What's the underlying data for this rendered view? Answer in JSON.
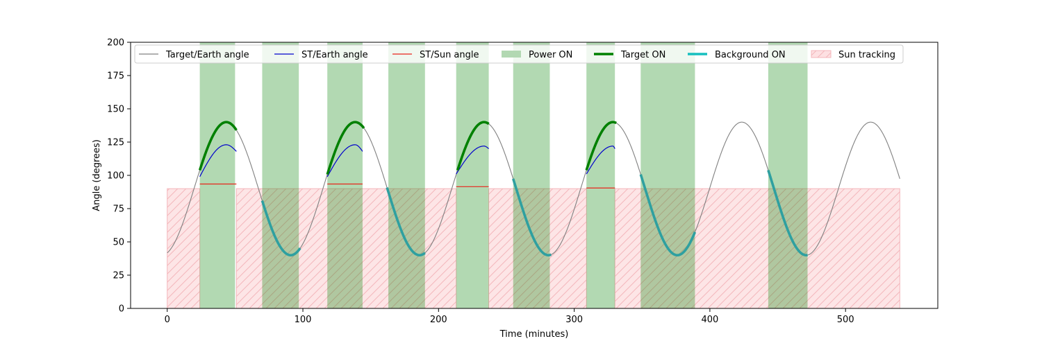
{
  "chart_data": {
    "type": "line",
    "title": "",
    "xlabel": "Time (minutes)",
    "ylabel": "Angle (degrees)",
    "xlim": [
      -27,
      568
    ],
    "ylim": [
      0,
      200
    ],
    "x_ticks": [
      0,
      100,
      200,
      300,
      400,
      500
    ],
    "y_ticks": [
      0,
      25,
      50,
      75,
      100,
      125,
      150,
      175,
      200
    ],
    "grid": false,
    "legend_position": "top",
    "colors": {
      "target_earth": "#808080",
      "st_earth": "#0000cc",
      "st_sun": "#e8231a",
      "power_on": "#b2d8b2",
      "target_on": "#008000",
      "background_on": "#2fa0a0",
      "background_on_legend": "#17bfbf",
      "sun_tracking_fill": "#fde0e2",
      "sun_tracking_hatch": "#f4b6bb"
    },
    "legend": [
      {
        "key": "target_earth",
        "label": "Target/Earth angle",
        "style": "thin-line"
      },
      {
        "key": "st_earth",
        "label": "ST/Earth angle",
        "style": "thin-line"
      },
      {
        "key": "st_sun",
        "label": "ST/Sun angle",
        "style": "thin-line"
      },
      {
        "key": "power_on",
        "label": "Power ON",
        "style": "patch"
      },
      {
        "key": "target_on",
        "label": "Target ON",
        "style": "thick-line"
      },
      {
        "key": "background_on_legend",
        "label": "Background ON",
        "style": "thick-line"
      },
      {
        "key": "sun_tracking_fill",
        "label": "Sun tracking",
        "style": "hatch-patch"
      }
    ],
    "target_earth_model": {
      "mean": 90,
      "amplitude": 50,
      "period": 95.0,
      "peak_time": 43.5,
      "t_start": 0,
      "t_end": 540
    },
    "power_on_intervals": [
      [
        24,
        50
      ],
      [
        70,
        97
      ],
      [
        118,
        144
      ],
      [
        163,
        190
      ],
      [
        213,
        237
      ],
      [
        255,
        282
      ],
      [
        309,
        330
      ],
      [
        349,
        389
      ],
      [
        443,
        472
      ]
    ],
    "sun_tracking_intervals": [
      [
        0,
        24
      ],
      [
        51,
        213
      ],
      [
        237,
        309
      ],
      [
        330,
        540
      ]
    ],
    "sun_tracking_max": 90,
    "target_on_intervals": [
      [
        24,
        51
      ],
      [
        118,
        145
      ],
      [
        214,
        237
      ],
      [
        309,
        331
      ]
    ],
    "background_on_intervals": [
      [
        70,
        98
      ],
      [
        162,
        190
      ],
      [
        255,
        283
      ],
      [
        349,
        389
      ],
      [
        443,
        472
      ]
    ],
    "st_earth_segments": [
      {
        "t_start": 24,
        "t_end": 51,
        "y_start": 99,
        "y_peak": 123,
        "t_peak": 43.5,
        "y_end": 118
      },
      {
        "t_start": 118,
        "t_end": 144,
        "y_start": 99,
        "y_peak": 123,
        "t_peak": 138.5,
        "y_end": 118
      },
      {
        "t_start": 213,
        "t_end": 237,
        "y_start": 101,
        "y_peak": 122,
        "t_peak": 233.5,
        "y_end": 120
      },
      {
        "t_start": 309,
        "t_end": 330,
        "y_start": 101,
        "y_peak": 122,
        "t_peak": 328.5,
        "y_end": 120
      }
    ],
    "st_sun_segments": [
      {
        "t_start": 24,
        "t_end": 51,
        "value": 93.5
      },
      {
        "t_start": 118,
        "t_end": 144,
        "value": 93.5
      },
      {
        "t_start": 213,
        "t_end": 237,
        "value": 91.5
      },
      {
        "t_start": 309,
        "t_end": 330,
        "value": 90.5
      }
    ]
  }
}
